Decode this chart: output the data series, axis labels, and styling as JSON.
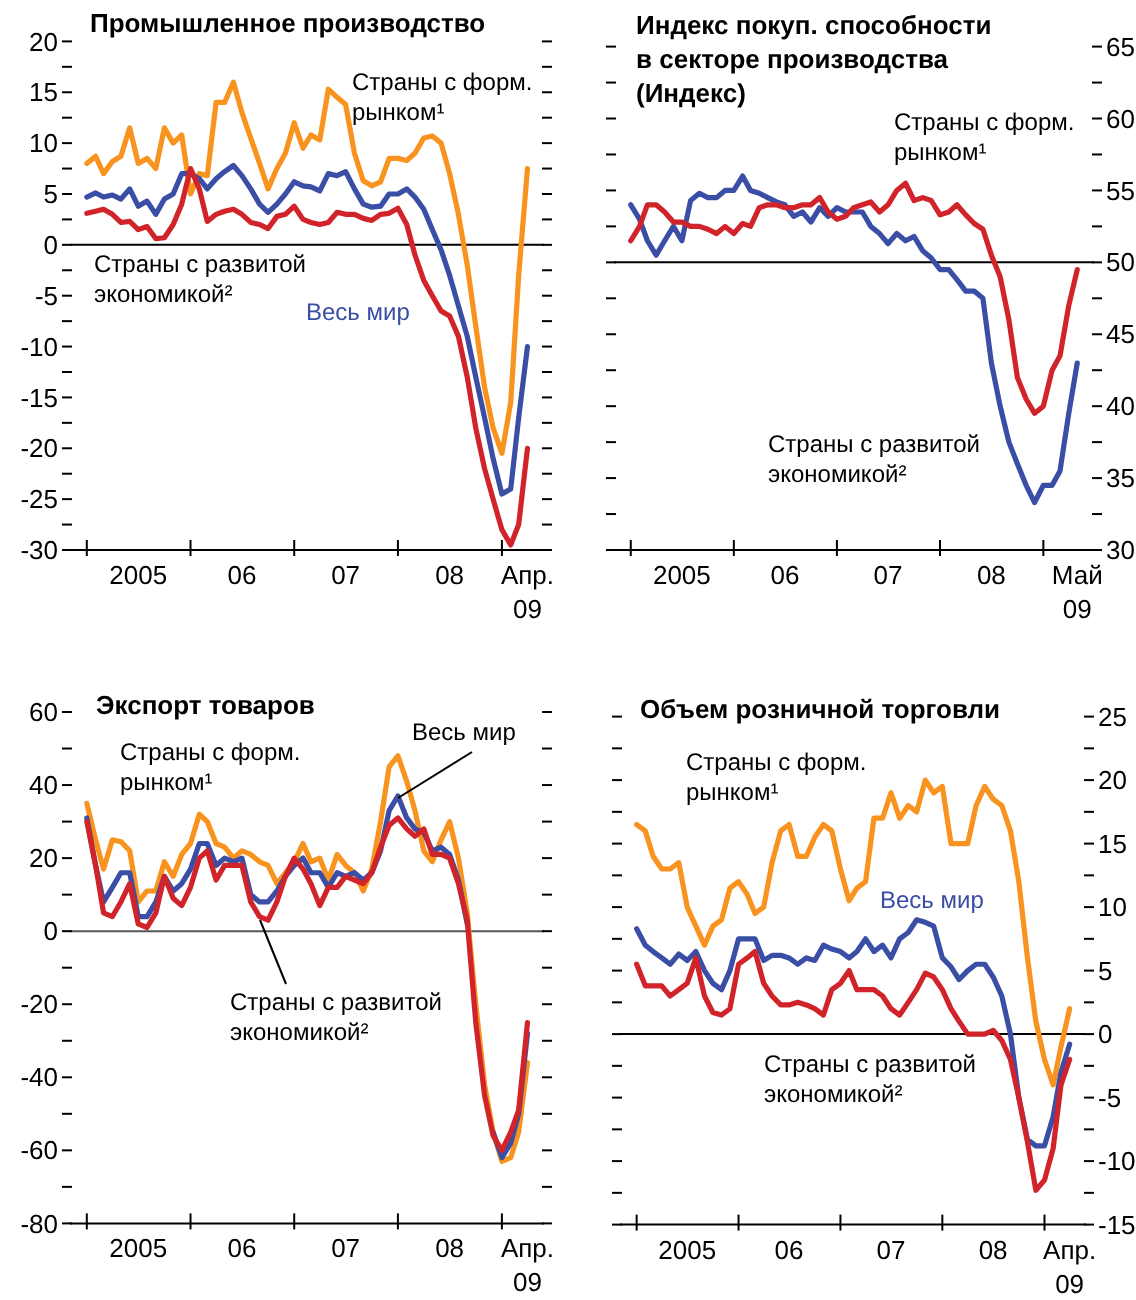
{
  "chart_data": [
    {
      "type": "line",
      "title": "Промышленное производство",
      "x": [
        "2005-01",
        "2005-02",
        "2005-03",
        "2005-04",
        "2005-05",
        "2005-06",
        "2005-07",
        "2005-08",
        "2005-09",
        "2005-10",
        "2005-11",
        "2005-12",
        "2006-01",
        "2006-02",
        "2006-03",
        "2006-04",
        "2006-05",
        "2006-06",
        "2006-07",
        "2006-08",
        "2006-09",
        "2006-10",
        "2006-11",
        "2006-12",
        "2007-01",
        "2007-02",
        "2007-03",
        "2007-04",
        "2007-05",
        "2007-06",
        "2007-07",
        "2007-08",
        "2007-09",
        "2007-10",
        "2007-11",
        "2007-12",
        "2008-01",
        "2008-02",
        "2008-03",
        "2008-04",
        "2008-05",
        "2008-06",
        "2008-07",
        "2008-08",
        "2008-09",
        "2008-10",
        "2008-11",
        "2008-12",
        "2009-01",
        "2009-02",
        "2009-03",
        "2009-04"
      ],
      "xlim": [
        "2004-12",
        "2009-05"
      ],
      "xticks": [
        {
          "value": "2005-01",
          "label": null
        },
        {
          "value": "2006-01",
          "label": null
        },
        {
          "value": "2007-01",
          "label": null
        },
        {
          "value": "2008-01",
          "label": null
        },
        {
          "value": "2009-01",
          "label": null
        },
        {
          "value": "2005-07",
          "label": "2005"
        },
        {
          "value": "2006-07",
          "label": "06"
        },
        {
          "value": "2007-07",
          "label": "07"
        },
        {
          "value": "2008-07",
          "label": "08"
        },
        {
          "value": "2009-04",
          "label": "Апр. 09"
        }
      ],
      "ylim": [
        -30,
        20
      ],
      "yticks": [
        -30,
        {
          "value": -27.5,
          "label": null
        },
        -25,
        {
          "value": -22.5,
          "label": null
        },
        -20,
        {
          "value": -17.5,
          "label": null
        },
        -15,
        {
          "value": -12.5,
          "label": null
        },
        -10,
        {
          "value": -7.5,
          "label": null
        },
        -5,
        {
          "value": -2.5,
          "label": null
        },
        0,
        {
          "value": 2.5,
          "label": null
        },
        5,
        {
          "value": 7.5,
          "label": null
        },
        10,
        {
          "value": 12.5,
          "label": null
        },
        15,
        {
          "value": 17.5,
          "label": null
        },
        20
      ],
      "ref_lines": [
        {
          "axis": "y",
          "value": 0,
          "color": "#000000"
        }
      ],
      "series": [
        {
          "name": "Страны с форм. рынком¹",
          "color": "#f7931e",
          "values": [
            8,
            8.7,
            7,
            8.2,
            8.7,
            11.5,
            8,
            8.5,
            7.5,
            11.5,
            10,
            10.8,
            5,
            7,
            6.8,
            14,
            14,
            16,
            13,
            10.5,
            8,
            5.5,
            7.5,
            9,
            12,
            9.5,
            10.8,
            10.3,
            15.3,
            14.5,
            13.8,
            9,
            6.3,
            5.8,
            6.2,
            8.5,
            8.5,
            8.3,
            9,
            10.5,
            10.7,
            10,
            7,
            3,
            -2,
            -8,
            -14,
            -18,
            -20.5,
            -15.5,
            -3,
            7.5
          ]
        },
        {
          "name": "Весь мир",
          "color": "#3a4ea5",
          "values": [
            4.7,
            5.1,
            4.7,
            4.9,
            4.5,
            5.5,
            3.8,
            4.3,
            3,
            4.5,
            5,
            7,
            7,
            6.5,
            5.5,
            6.5,
            7.2,
            7.8,
            6.8,
            5.5,
            4,
            3.2,
            4,
            5,
            6.2,
            5.8,
            5.7,
            5.3,
            7,
            6.8,
            7.2,
            5.5,
            4,
            3.7,
            3.8,
            5,
            5,
            5.5,
            4.7,
            3.5,
            1.5,
            -0.5,
            -3,
            -6,
            -9,
            -13,
            -17,
            -21,
            -24.5,
            -24,
            -17,
            -10
          ]
        },
        {
          "name": "Страны с развитой экономикой²",
          "color": "#d1232a",
          "values": [
            3.1,
            3.3,
            3.5,
            3,
            2.2,
            2.3,
            1.5,
            1.8,
            0.6,
            0.7,
            2,
            4,
            7.5,
            5.5,
            2.3,
            3,
            3.3,
            3.5,
            3,
            2.2,
            2,
            1.6,
            2.8,
            3,
            3.8,
            2.5,
            2.2,
            2,
            2.2,
            3.2,
            3,
            3,
            2.6,
            2.4,
            3,
            3.1,
            3.6,
            2,
            -1,
            -3.5,
            -5,
            -6.5,
            -7,
            -9,
            -13,
            -18,
            -22,
            -25,
            -28,
            -29.5,
            -27.5,
            -20
          ]
        }
      ]
    },
    {
      "type": "line",
      "title": "Индекс покуп. способности в секторе производства (Индекс)",
      "x": [
        "2005-01",
        "2005-02",
        "2005-03",
        "2005-04",
        "2005-05",
        "2005-06",
        "2005-07",
        "2005-08",
        "2005-09",
        "2005-10",
        "2005-11",
        "2005-12",
        "2006-01",
        "2006-02",
        "2006-03",
        "2006-04",
        "2006-05",
        "2006-06",
        "2006-07",
        "2006-08",
        "2006-09",
        "2006-10",
        "2006-11",
        "2006-12",
        "2007-01",
        "2007-02",
        "2007-03",
        "2007-04",
        "2007-05",
        "2007-06",
        "2007-07",
        "2007-08",
        "2007-09",
        "2007-10",
        "2007-11",
        "2007-12",
        "2008-01",
        "2008-02",
        "2008-03",
        "2008-04",
        "2008-05",
        "2008-06",
        "2008-07",
        "2008-08",
        "2008-09",
        "2008-10",
        "2008-11",
        "2008-12",
        "2009-01",
        "2009-02",
        "2009-03",
        "2009-04",
        "2009-05"
      ],
      "xlim": [
        "2004-12",
        "2009-06"
      ],
      "xticks": [
        {
          "value": "2005-01",
          "label": null
        },
        {
          "value": "2006-01",
          "label": null
        },
        {
          "value": "2007-01",
          "label": null
        },
        {
          "value": "2008-01",
          "label": null
        },
        {
          "value": "2009-01",
          "label": null
        },
        {
          "value": "2005-07",
          "label": "2005"
        },
        {
          "value": "2006-07",
          "label": "06"
        },
        {
          "value": "2007-07",
          "label": "07"
        },
        {
          "value": "2008-07",
          "label": "08"
        },
        {
          "value": "2009-05",
          "label": "Май 09"
        }
      ],
      "ylim": [
        30,
        65
      ],
      "yticks": [
        30,
        {
          "value": 32.5,
          "label": null
        },
        35,
        {
          "value": 37.5,
          "label": null
        },
        40,
        {
          "value": 42.5,
          "label": null
        },
        45,
        {
          "value": 47.5,
          "label": null
        },
        50,
        {
          "value": 52.5,
          "label": null
        },
        55,
        {
          "value": 57.5,
          "label": null
        },
        60,
        {
          "value": 62.5,
          "label": null
        },
        65
      ],
      "ref_lines": [
        {
          "axis": "y",
          "value": 50,
          "color": "#000000"
        }
      ],
      "series": [
        {
          "name": "Страны с развитой экономикой²",
          "color": "#3a4ea5",
          "values": [
            54,
            53,
            51.5,
            50.5,
            51.5,
            52.5,
            51.5,
            54.3,
            54.8,
            54.5,
            54.5,
            55,
            55,
            56,
            55,
            54.8,
            54.5,
            54.2,
            54,
            53.2,
            53.5,
            52.8,
            53.8,
            53.2,
            53.8,
            53.5,
            53.5,
            53.5,
            52.5,
            52,
            51.3,
            52,
            51.5,
            51.8,
            50.8,
            50.3,
            49.5,
            49.5,
            48.8,
            48,
            48,
            47.5,
            43,
            40,
            37.5,
            36,
            34.5,
            33.3,
            34.5,
            34.5,
            35.5,
            39.5,
            43
          ]
        },
        {
          "name": "Страны с форм. рынком¹",
          "color": "#d1232a",
          "values": [
            51.5,
            52.5,
            54,
            54,
            53.5,
            52.8,
            52.8,
            52.5,
            52.5,
            52.3,
            52,
            52.5,
            52,
            52.7,
            52.5,
            53.8,
            54,
            54,
            53.8,
            53.8,
            54,
            54,
            54.5,
            53.5,
            53,
            53.2,
            53.8,
            54,
            54.2,
            53.5,
            54,
            55,
            55.5,
            54.3,
            54.5,
            54.3,
            53.3,
            53.5,
            54,
            53.3,
            52.7,
            52.3,
            50.5,
            49,
            46,
            42,
            40.5,
            39.5,
            40,
            42.5,
            43.5,
            47,
            49.5
          ]
        }
      ]
    },
    {
      "type": "line",
      "title": "Экспорт товаров",
      "x": [
        "2005-01",
        "2005-02",
        "2005-03",
        "2005-04",
        "2005-05",
        "2005-06",
        "2005-07",
        "2005-08",
        "2005-09",
        "2005-10",
        "2005-11",
        "2005-12",
        "2006-01",
        "2006-02",
        "2006-03",
        "2006-04",
        "2006-05",
        "2006-06",
        "2006-07",
        "2006-08",
        "2006-09",
        "2006-10",
        "2006-11",
        "2006-12",
        "2007-01",
        "2007-02",
        "2007-03",
        "2007-04",
        "2007-05",
        "2007-06",
        "2007-07",
        "2007-08",
        "2007-09",
        "2007-10",
        "2007-11",
        "2007-12",
        "2008-01",
        "2008-02",
        "2008-03",
        "2008-04",
        "2008-05",
        "2008-06",
        "2008-07",
        "2008-08",
        "2008-09",
        "2008-10",
        "2008-11",
        "2008-12",
        "2009-01",
        "2009-02",
        "2009-03",
        "2009-04"
      ],
      "xlim": [
        "2004-12",
        "2009-05"
      ],
      "xticks": [
        {
          "value": "2005-01",
          "label": null
        },
        {
          "value": "2006-01",
          "label": null
        },
        {
          "value": "2007-01",
          "label": null
        },
        {
          "value": "2008-01",
          "label": null
        },
        {
          "value": "2009-01",
          "label": null
        },
        {
          "value": "2005-07",
          "label": "2005"
        },
        {
          "value": "2006-07",
          "label": "06"
        },
        {
          "value": "2007-07",
          "label": "07"
        },
        {
          "value": "2008-07",
          "label": "08"
        },
        {
          "value": "2009-04",
          "label": "Апр. 09"
        }
      ],
      "ylim": [
        -80,
        60
      ],
      "yticks": [
        -80,
        {
          "value": -70,
          "label": null
        },
        -60,
        {
          "value": -50,
          "label": null
        },
        -40,
        {
          "value": -30,
          "label": null
        },
        -20,
        {
          "value": -10,
          "label": null
        },
        0,
        {
          "value": 10,
          "label": null
        },
        20,
        {
          "value": 30,
          "label": null
        },
        40,
        {
          "value": 50,
          "label": null
        },
        60
      ],
      "ref_lines": [
        {
          "axis": "y",
          "value": 0,
          "color": "#555555"
        }
      ],
      "series": [
        {
          "name": "Страны с форм. рынком¹",
          "color": "#f7931e",
          "values": [
            35,
            25,
            17,
            25,
            24.5,
            22,
            8,
            11,
            11,
            19,
            15,
            21,
            24,
            32,
            30,
            24,
            23,
            20,
            22,
            21,
            19,
            18,
            13,
            16,
            19,
            24,
            19,
            20,
            14,
            21,
            18,
            16,
            11,
            17,
            30,
            45,
            48,
            41,
            33,
            22,
            19,
            25,
            30,
            20,
            5,
            -20,
            -42,
            -55,
            -63,
            -62,
            -55,
            -36
          ]
        },
        {
          "name": "Весь мир",
          "color": "#3a4ea5",
          "values": [
            31,
            18,
            8,
            12,
            16,
            16,
            4,
            4,
            8,
            15,
            11,
            13,
            17,
            24,
            24,
            18,
            20,
            19,
            20,
            10,
            8,
            8,
            11,
            15,
            18,
            20,
            16,
            16,
            12,
            16,
            15,
            16,
            14,
            16,
            22,
            33,
            37,
            31,
            28,
            27,
            22,
            23,
            21,
            14,
            2,
            null,
            null,
            -55,
            -62,
            -58,
            -50,
            -28
          ]
        },
        {
          "name": "Страны с развитой экономикой²",
          "color": "#d1232a",
          "values": [
            30,
            18,
            5,
            4,
            8,
            13,
            2,
            1,
            5,
            15,
            9,
            7,
            12,
            20,
            22,
            14,
            18,
            18,
            18,
            8,
            4,
            3,
            8,
            15,
            20,
            17,
            13,
            7,
            12,
            12,
            15,
            14,
            13,
            16,
            23,
            29,
            31,
            28,
            26,
            28,
            21,
            21,
            20,
            13,
            3,
            -25,
            -45,
            -56,
            -60,
            -55,
            -49,
            -25
          ]
        }
      ]
    },
    {
      "type": "line",
      "title": "Объем розничной торговли",
      "x": [
        "2005-01",
        "2005-02",
        "2005-03",
        "2005-04",
        "2005-05",
        "2005-06",
        "2005-07",
        "2005-08",
        "2005-09",
        "2005-10",
        "2005-11",
        "2005-12",
        "2006-01",
        "2006-02",
        "2006-03",
        "2006-04",
        "2006-05",
        "2006-06",
        "2006-07",
        "2006-08",
        "2006-09",
        "2006-10",
        "2006-11",
        "2006-12",
        "2007-01",
        "2007-02",
        "2007-03",
        "2007-04",
        "2007-05",
        "2007-06",
        "2007-07",
        "2007-08",
        "2007-09",
        "2007-10",
        "2007-11",
        "2007-12",
        "2008-01",
        "2008-02",
        "2008-03",
        "2008-04",
        "2008-05",
        "2008-06",
        "2008-07",
        "2008-08",
        "2008-09",
        "2008-10",
        "2008-11",
        "2008-12",
        "2009-01",
        "2009-02",
        "2009-03",
        "2009-04"
      ],
      "xlim": [
        "2004-12",
        "2009-05"
      ],
      "xticks": [
        {
          "value": "2005-01",
          "label": null
        },
        {
          "value": "2006-01",
          "label": null
        },
        {
          "value": "2007-01",
          "label": null
        },
        {
          "value": "2008-01",
          "label": null
        },
        {
          "value": "2009-01",
          "label": null
        },
        {
          "value": "2005-07",
          "label": "2005"
        },
        {
          "value": "2006-07",
          "label": "06"
        },
        {
          "value": "2007-07",
          "label": "07"
        },
        {
          "value": "2008-07",
          "label": "08"
        },
        {
          "value": "2009-04",
          "label": "Апр. 09"
        }
      ],
      "ylim": [
        -15,
        25
      ],
      "yticks": [
        -15,
        {
          "value": -12.5,
          "label": null
        },
        -10,
        {
          "value": -7.5,
          "label": null
        },
        -5,
        {
          "value": -2.5,
          "label": null
        },
        0,
        {
          "value": 2.5,
          "label": null
        },
        5,
        {
          "value": 7.5,
          "label": null
        },
        10,
        {
          "value": 12.5,
          "label": null
        },
        15,
        {
          "value": 17.5,
          "label": null
        },
        20,
        {
          "value": 22.5,
          "label": null
        },
        25
      ],
      "ref_lines": [
        {
          "axis": "y",
          "value": 0,
          "color": "#000000"
        }
      ],
      "series": [
        {
          "name": "Страны с форм. рынком¹",
          "color": "#f7931e",
          "values": [
            16.5,
            16,
            14,
            13,
            13,
            13.5,
            10,
            8.5,
            7,
            8.5,
            9,
            11.5,
            12,
            11,
            9.5,
            10,
            13.5,
            16,
            16.5,
            14,
            14,
            15.5,
            16.5,
            16,
            13,
            10.5,
            11.5,
            12,
            17,
            17,
            19,
            17,
            18,
            17.5,
            20,
            19,
            19.5,
            15,
            15,
            15,
            18,
            19.5,
            18.5,
            18,
            16,
            12,
            6,
            1,
            -2,
            -4,
            -1,
            2
          ]
        },
        {
          "name": "Весь мир",
          "color": "#3a4ea5",
          "values": [
            8.3,
            7,
            6.5,
            6,
            5.5,
            6.3,
            5.8,
            6.5,
            5,
            4,
            3.5,
            5,
            7.5,
            7.5,
            7.5,
            5.8,
            6.2,
            6.2,
            6,
            5.5,
            6,
            5.8,
            7,
            6.7,
            6.5,
            6,
            6.5,
            7.5,
            6.5,
            7,
            6,
            7.5,
            8,
            9,
            8.8,
            8.5,
            6,
            5.3,
            4.3,
            5,
            5.5,
            5.5,
            4.5,
            3,
            0,
            -5,
            -8.3,
            -8.8,
            -8.8,
            -6.5,
            -3,
            -0.8
          ]
        },
        {
          "name": "Страны с развитой экономикой²",
          "color": "#d1232a",
          "values": [
            5.5,
            3.8,
            3.8,
            3.8,
            3,
            3.5,
            4,
            6,
            3,
            1.7,
            1.5,
            2,
            5.5,
            6,
            6.5,
            4,
            3,
            2.3,
            2.3,
            2.5,
            2.3,
            2,
            1.5,
            3.5,
            4,
            5,
            3.5,
            3.5,
            3.5,
            3,
            2,
            1.5,
            2.5,
            3.5,
            4.8,
            4.5,
            3.5,
            2,
            1,
            0,
            0,
            0,
            0.3,
            -0.5,
            -2,
            -5,
            -8.5,
            -12.3,
            -11.5,
            -9,
            -4,
            -2
          ]
        }
      ]
    }
  ]
}
